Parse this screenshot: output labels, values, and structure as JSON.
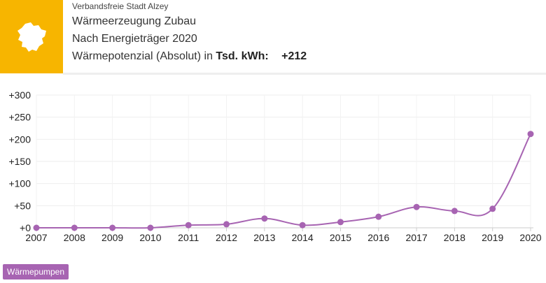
{
  "header": {
    "region": "Verbandsfreie Stadt Alzey",
    "title": "Wärmeerzeugung Zubau",
    "subtitle": "Nach Energieträger 2020",
    "metric_prefix": "Wärmepotenzial (Absolut) in",
    "unit": "Tsd. kWh:",
    "value": "+212",
    "logo_icon": "state-map-icon",
    "logo_color": "#f7b500"
  },
  "legend": {
    "label": "Wärmepumpen",
    "color": "#a764b2"
  },
  "chart_data": {
    "type": "line",
    "x": [
      "2007",
      "2008",
      "2009",
      "2010",
      "2011",
      "2012",
      "2013",
      "2014",
      "2015",
      "2016",
      "2017",
      "2018",
      "2019",
      "2020"
    ],
    "series": [
      {
        "name": "Wärmepumpen",
        "color": "#a764b2",
        "values": [
          0,
          0,
          0,
          0,
          6,
          8,
          21,
          6,
          13,
          25,
          47,
          38,
          43,
          212
        ]
      }
    ],
    "yticks": [
      "+0",
      "+50",
      "+100",
      "+150",
      "+200",
      "+250",
      "+300"
    ],
    "ylim": [
      0,
      300
    ],
    "grid": true
  }
}
